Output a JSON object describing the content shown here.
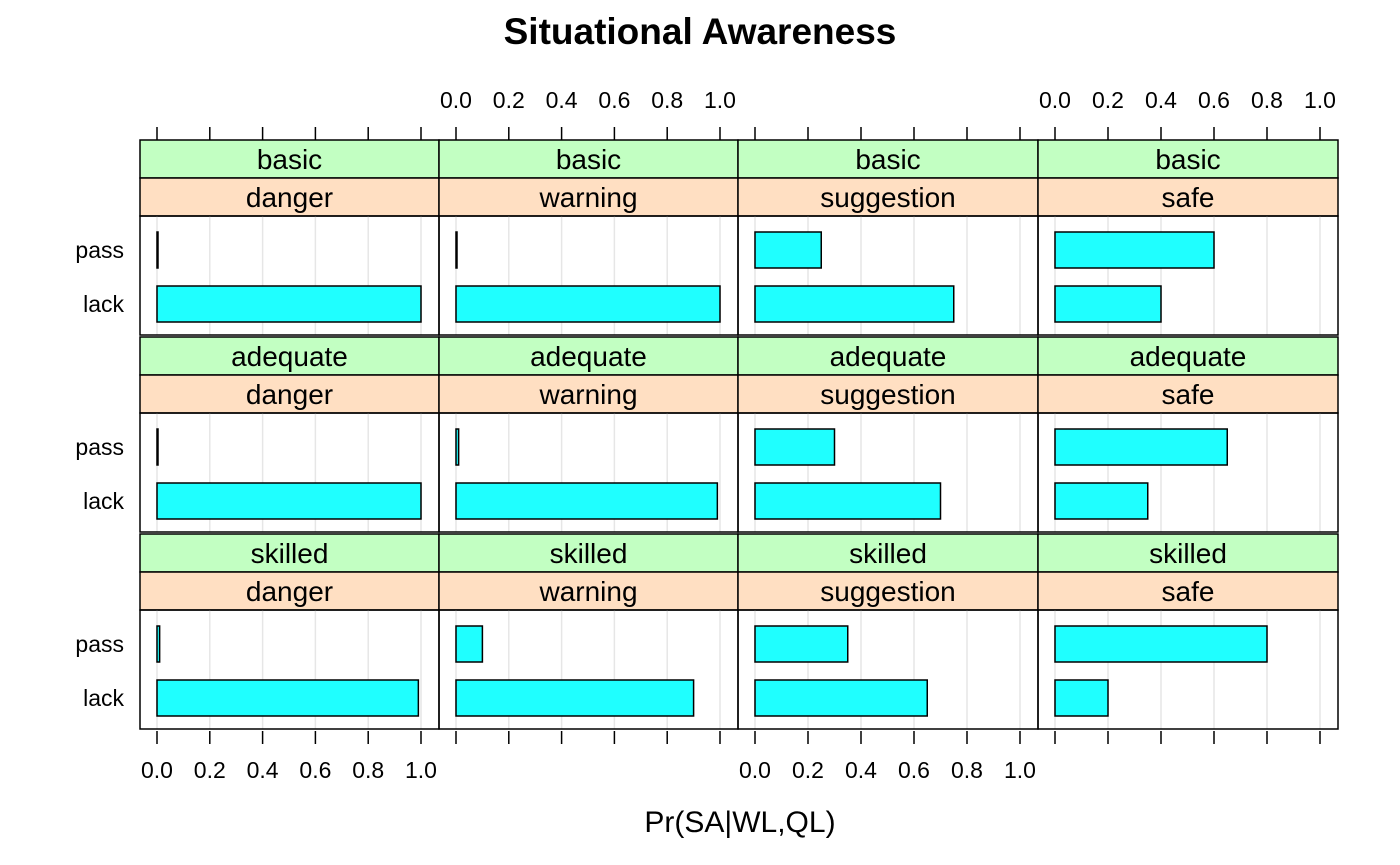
{
  "chart_data": {
    "type": "bar",
    "orientation": "horizontal",
    "title": "Situational Awareness",
    "xlabel": "Pr(SA|WL,QL)",
    "ylabel": "",
    "xlim": [
      0,
      1
    ],
    "x_ticks": [
      "0.0",
      "0.2",
      "0.4",
      "0.6",
      "0.8",
      "1.0"
    ],
    "categories": [
      "pass",
      "lack"
    ],
    "colors": {
      "bar_fill": "#1fffff",
      "strip_outer": "#c2ffc2",
      "strip_inner": "#ffdfc2",
      "grid": "#e6e6e6"
    },
    "panel_rows": [
      {
        "outer": "basic",
        "panels": [
          {
            "inner": "danger",
            "values": [
              0.0,
              1.0
            ]
          },
          {
            "inner": "warning",
            "values": [
              0.0,
              1.0
            ]
          },
          {
            "inner": "suggestion",
            "values": [
              0.25,
              0.75
            ]
          },
          {
            "inner": "safe",
            "values": [
              0.6,
              0.4
            ]
          }
        ]
      },
      {
        "outer": "adequate",
        "panels": [
          {
            "inner": "danger",
            "values": [
              0.0,
              1.0
            ]
          },
          {
            "inner": "warning",
            "values": [
              0.01,
              0.99
            ]
          },
          {
            "inner": "suggestion",
            "values": [
              0.3,
              0.7
            ]
          },
          {
            "inner": "safe",
            "values": [
              0.65,
              0.35
            ]
          }
        ]
      },
      {
        "outer": "skilled",
        "panels": [
          {
            "inner": "danger",
            "values": [
              0.01,
              0.99
            ]
          },
          {
            "inner": "warning",
            "values": [
              0.1,
              0.9
            ]
          },
          {
            "inner": "suggestion",
            "values": [
              0.35,
              0.65
            ]
          },
          {
            "inner": "safe",
            "values": [
              0.8,
              0.2
            ]
          }
        ]
      }
    ]
  }
}
